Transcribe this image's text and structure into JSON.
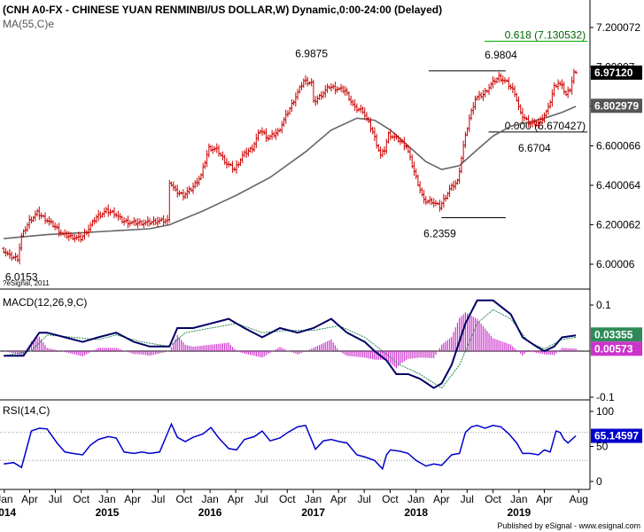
{
  "header": {
    "title": "(CNH A0-FX - CHINESE YUAN RENMINBI/US DOLLAR,W) Dynamic,0:00-24:00 (Delayed)",
    "ma_label": "MA(55,C)e",
    "copyright": "?eSignal, 2011"
  },
  "footer": {
    "publisher": "Published by eSignal - www.esignal.com"
  },
  "colors": {
    "price": "#cc0000",
    "ma": "#666666",
    "macd": "#000066",
    "signal": "#2e8b57",
    "histogram": "#cc33cc",
    "rsi": "#0000cc",
    "fib_line": "#00aa00",
    "last_price_bg": "#000000",
    "ma_bg": "#555555",
    "macd_badge": "#2e8b57",
    "signal_badge": "#cc33cc",
    "rsi_badge": "#0000cc"
  },
  "chart_data": [
    {
      "type": "ohlc",
      "name": "price",
      "y_ticks": [
        "7.200072",
        "7.00007",
        "6.800068",
        "6.600066",
        "6.400064",
        "6.200062",
        "6.00006"
      ],
      "ylim": [
        5.88,
        7.24
      ],
      "price_path": [
        [
          "2013-12-30",
          6.08
        ],
        [
          "2014-01-27",
          6.04
        ],
        [
          "2014-02-24",
          6.03
        ],
        [
          "2014-03-10",
          6.14
        ],
        [
          "2014-04-07",
          6.22
        ],
        [
          "2014-05-05",
          6.26
        ],
        [
          "2014-06-02",
          6.23
        ],
        [
          "2014-07-07",
          6.19
        ],
        [
          "2014-08-04",
          6.15
        ],
        [
          "2014-09-01",
          6.14
        ],
        [
          "2014-10-06",
          6.13
        ],
        [
          "2014-11-03",
          6.18
        ],
        [
          "2014-12-01",
          6.24
        ],
        [
          "2015-01-05",
          6.27
        ],
        [
          "2015-02-02",
          6.26
        ],
        [
          "2015-03-02",
          6.22
        ],
        [
          "2015-04-06",
          6.21
        ],
        [
          "2015-05-04",
          6.21
        ],
        [
          "2015-06-01",
          6.21
        ],
        [
          "2015-07-06",
          6.22
        ],
        [
          "2015-08-10",
          6.22
        ],
        [
          "2015-08-17",
          6.42
        ],
        [
          "2015-09-07",
          6.37
        ],
        [
          "2015-10-05",
          6.35
        ],
        [
          "2015-11-02",
          6.38
        ],
        [
          "2015-12-07",
          6.45
        ],
        [
          "2016-01-04",
          6.59
        ],
        [
          "2016-02-01",
          6.58
        ],
        [
          "2016-03-07",
          6.51
        ],
        [
          "2016-04-04",
          6.48
        ],
        [
          "2016-05-02",
          6.55
        ],
        [
          "2016-06-06",
          6.59
        ],
        [
          "2016-07-04",
          6.68
        ],
        [
          "2016-08-01",
          6.64
        ],
        [
          "2016-09-05",
          6.67
        ],
        [
          "2016-10-03",
          6.75
        ],
        [
          "2016-11-07",
          6.85
        ],
        [
          "2016-12-05",
          6.93
        ],
        [
          "2017-01-02",
          6.92
        ],
        [
          "2017-01-09",
          6.82
        ],
        [
          "2017-02-06",
          6.86
        ],
        [
          "2017-03-06",
          6.9
        ],
        [
          "2017-04-03",
          6.89
        ],
        [
          "2017-05-01",
          6.88
        ],
        [
          "2017-06-05",
          6.79
        ],
        [
          "2017-07-03",
          6.78
        ],
        [
          "2017-08-07",
          6.67
        ],
        [
          "2017-09-04",
          6.55
        ],
        [
          "2017-09-18",
          6.58
        ],
        [
          "2017-10-02",
          6.66
        ],
        [
          "2017-11-06",
          6.63
        ],
        [
          "2017-12-04",
          6.6
        ],
        [
          "2018-01-01",
          6.47
        ],
        [
          "2018-02-05",
          6.32
        ],
        [
          "2018-03-05",
          6.32
        ],
        [
          "2018-04-02",
          6.29
        ],
        [
          "2018-05-07",
          6.38
        ],
        [
          "2018-06-04",
          6.42
        ],
        [
          "2018-06-25",
          6.6
        ],
        [
          "2018-07-16",
          6.74
        ],
        [
          "2018-08-06",
          6.84
        ],
        [
          "2018-09-03",
          6.86
        ],
        [
          "2018-10-01",
          6.91
        ],
        [
          "2018-10-29",
          6.95
        ],
        [
          "2018-11-26",
          6.92
        ],
        [
          "2018-12-24",
          6.87
        ],
        [
          "2019-01-14",
          6.76
        ],
        [
          "2019-02-11",
          6.72
        ],
        [
          "2019-03-11",
          6.71
        ],
        [
          "2019-04-01",
          6.74
        ],
        [
          "2019-04-22",
          6.79
        ],
        [
          "2019-05-13",
          6.9
        ],
        [
          "2019-05-27",
          6.92
        ],
        [
          "2019-06-10",
          6.9
        ],
        [
          "2019-06-24",
          6.86
        ],
        [
          "2019-07-08",
          6.89
        ],
        [
          "2019-07-22",
          6.9712
        ]
      ],
      "ma_path": [
        [
          "2013-12-30",
          6.13
        ],
        [
          "2014-06-02",
          6.15
        ],
        [
          "2014-10-06",
          6.16
        ],
        [
          "2015-02-02",
          6.17
        ],
        [
          "2015-06-01",
          6.18
        ],
        [
          "2015-08-10",
          6.2
        ],
        [
          "2015-12-07",
          6.27
        ],
        [
          "2016-04-04",
          6.35
        ],
        [
          "2016-08-01",
          6.44
        ],
        [
          "2016-12-05",
          6.57
        ],
        [
          "2017-03-06",
          6.68
        ],
        [
          "2017-06-05",
          6.74
        ],
        [
          "2017-08-07",
          6.73
        ],
        [
          "2017-10-02",
          6.68
        ],
        [
          "2017-12-04",
          6.6
        ],
        [
          "2018-02-05",
          6.52
        ],
        [
          "2018-04-02",
          6.48
        ],
        [
          "2018-06-04",
          6.5
        ],
        [
          "2018-08-06",
          6.58
        ],
        [
          "2018-10-01",
          6.65
        ],
        [
          "2018-12-03",
          6.7
        ],
        [
          "2019-02-04",
          6.72
        ],
        [
          "2019-04-01",
          6.74
        ],
        [
          "2019-06-03",
          6.77
        ],
        [
          "2019-07-22",
          6.8
        ]
      ],
      "annotations": [
        {
          "label": "6.9875",
          "date": "2016-12-26",
          "value": 6.9875,
          "pos": "above"
        },
        {
          "label": "6.9804",
          "date": "2018-10-29",
          "value": 6.9804,
          "pos": "above"
        },
        {
          "label": "6.2359",
          "date": "2018-03-26",
          "value": 6.2359,
          "pos": "below"
        },
        {
          "label": "6.0153",
          "date": "2014-03-03",
          "value": 6.0153,
          "pos": "below"
        },
        {
          "label": "6.6704",
          "date": "2019-02-25",
          "value": 6.6704,
          "pos": "below"
        }
      ],
      "fib_lines": [
        {
          "label": "0.618 (7.130532)",
          "value": 7.130532,
          "from": "2018-09-01",
          "to": "2019-09-01",
          "color": "#00aa00"
        },
        {
          "label": "0.000 (6.670427)",
          "value": 6.670427,
          "from": "2018-09-15",
          "to": "2019-09-01",
          "color": "#000000"
        }
      ],
      "level_lines": [
        {
          "value": 6.9804,
          "from": "2018-02-15",
          "to": "2018-11-15"
        },
        {
          "value": 6.2359,
          "from": "2018-04-01",
          "to": "2018-11-15"
        }
      ],
      "last_price_label": "6.97120",
      "ma_value_label": "6.802979"
    },
    {
      "type": "line",
      "name": "MACD(12,26,9,C)",
      "label": "MACD(12,26,9,C)",
      "y_ticks": [
        "0.1",
        "-0.1"
      ],
      "ylim": [
        -0.12,
        0.13
      ],
      "macd_path": [
        [
          "2013-12-30",
          -0.01
        ],
        [
          "2014-03-10",
          -0.01
        ],
        [
          "2014-05-05",
          0.04
        ],
        [
          "2014-06-02",
          0.04
        ],
        [
          "2014-08-04",
          0.03
        ],
        [
          "2014-10-06",
          0.02
        ],
        [
          "2014-12-01",
          0.03
        ],
        [
          "2015-02-02",
          0.04
        ],
        [
          "2015-04-06",
          0.02
        ],
        [
          "2015-06-01",
          0.01
        ],
        [
          "2015-08-10",
          0.01
        ],
        [
          "2015-09-07",
          0.05
        ],
        [
          "2015-11-02",
          0.05
        ],
        [
          "2016-01-04",
          0.06
        ],
        [
          "2016-03-07",
          0.07
        ],
        [
          "2016-05-02",
          0.05
        ],
        [
          "2016-07-04",
          0.03
        ],
        [
          "2016-09-05",
          0.05
        ],
        [
          "2016-11-07",
          0.04
        ],
        [
          "2017-01-02",
          0.05
        ],
        [
          "2017-03-06",
          0.07
        ],
        [
          "2017-05-01",
          0.04
        ],
        [
          "2017-07-03",
          0.02
        ],
        [
          "2017-08-07",
          0.0
        ],
        [
          "2017-09-18",
          -0.02
        ],
        [
          "2017-10-23",
          -0.05
        ],
        [
          "2017-12-04",
          -0.05
        ],
        [
          "2018-01-15",
          -0.06
        ],
        [
          "2018-03-05",
          -0.08
        ],
        [
          "2018-04-02",
          -0.07
        ],
        [
          "2018-05-07",
          -0.03
        ],
        [
          "2018-06-25",
          0.06
        ],
        [
          "2018-08-06",
          0.11
        ],
        [
          "2018-10-01",
          0.11
        ],
        [
          "2018-12-03",
          0.08
        ],
        [
          "2019-01-14",
          0.03
        ],
        [
          "2019-03-04",
          0.01
        ],
        [
          "2019-04-01",
          0.0
        ],
        [
          "2019-05-06",
          0.01
        ],
        [
          "2019-06-03",
          0.03
        ],
        [
          "2019-07-22",
          0.034
        ]
      ],
      "signal_path": [
        [
          "2013-12-30",
          -0.01
        ],
        [
          "2014-04-07",
          0.0
        ],
        [
          "2014-06-02",
          0.035
        ],
        [
          "2014-09-01",
          0.03
        ],
        [
          "2014-12-01",
          0.025
        ],
        [
          "2015-02-02",
          0.035
        ],
        [
          "2015-05-04",
          0.02
        ],
        [
          "2015-08-10",
          0.01
        ],
        [
          "2015-10-05",
          0.04
        ],
        [
          "2016-01-04",
          0.05
        ],
        [
          "2016-04-04",
          0.06
        ],
        [
          "2016-07-04",
          0.04
        ],
        [
          "2016-10-03",
          0.045
        ],
        [
          "2017-01-02",
          0.045
        ],
        [
          "2017-04-03",
          0.055
        ],
        [
          "2017-07-03",
          0.03
        ],
        [
          "2017-09-04",
          0.0
        ],
        [
          "2017-11-06",
          -0.03
        ],
        [
          "2018-01-15",
          -0.05
        ],
        [
          "2018-04-02",
          -0.08
        ],
        [
          "2018-06-04",
          -0.03
        ],
        [
          "2018-08-06",
          0.06
        ],
        [
          "2018-10-01",
          0.09
        ],
        [
          "2018-12-03",
          0.07
        ],
        [
          "2019-02-04",
          0.02
        ],
        [
          "2019-04-01",
          0.005
        ],
        [
          "2019-06-03",
          0.025
        ],
        [
          "2019-07-22",
          0.03
        ]
      ],
      "last_value_labels": [
        "0.03355",
        "0.00573"
      ]
    },
    {
      "type": "line",
      "name": "RSI(14,C)",
      "label": "RSI(14,C)",
      "y_ticks": [
        "100",
        "50",
        "0"
      ],
      "ylim": [
        0,
        100
      ],
      "overbought": 70,
      "oversold": 30,
      "rsi_path": [
        [
          "2013-12-30",
          25
        ],
        [
          "2014-02-03",
          27
        ],
        [
          "2014-03-03",
          20
        ],
        [
          "2014-04-07",
          72
        ],
        [
          "2014-05-05",
          76
        ],
        [
          "2014-06-02",
          75
        ],
        [
          "2014-07-07",
          55
        ],
        [
          "2014-08-04",
          42
        ],
        [
          "2014-09-01",
          40
        ],
        [
          "2014-10-06",
          38
        ],
        [
          "2014-11-03",
          52
        ],
        [
          "2014-12-01",
          60
        ],
        [
          "2015-01-05",
          64
        ],
        [
          "2015-02-02",
          62
        ],
        [
          "2015-03-02",
          42
        ],
        [
          "2015-04-06",
          40
        ],
        [
          "2015-05-04",
          42
        ],
        [
          "2015-06-01",
          40
        ],
        [
          "2015-07-06",
          42
        ],
        [
          "2015-08-17",
          82
        ],
        [
          "2015-09-07",
          63
        ],
        [
          "2015-10-05",
          57
        ],
        [
          "2015-11-02",
          63
        ],
        [
          "2015-12-07",
          68
        ],
        [
          "2016-01-04",
          77
        ],
        [
          "2016-02-01",
          62
        ],
        [
          "2016-03-07",
          47
        ],
        [
          "2016-04-04",
          45
        ],
        [
          "2016-05-02",
          60
        ],
        [
          "2016-06-06",
          64
        ],
        [
          "2016-07-04",
          72
        ],
        [
          "2016-08-01",
          58
        ],
        [
          "2016-09-05",
          62
        ],
        [
          "2016-10-03",
          70
        ],
        [
          "2016-11-07",
          78
        ],
        [
          "2016-12-05",
          80
        ],
        [
          "2017-01-09",
          46
        ],
        [
          "2017-02-06",
          58
        ],
        [
          "2017-03-06",
          60
        ],
        [
          "2017-04-03",
          57
        ],
        [
          "2017-05-01",
          55
        ],
        [
          "2017-06-05",
          38
        ],
        [
          "2017-07-03",
          35
        ],
        [
          "2017-08-07",
          30
        ],
        [
          "2017-09-04",
          18
        ],
        [
          "2017-09-18",
          38
        ],
        [
          "2017-10-02",
          45
        ],
        [
          "2017-11-06",
          43
        ],
        [
          "2017-12-04",
          40
        ],
        [
          "2018-01-01",
          30
        ],
        [
          "2018-02-05",
          22
        ],
        [
          "2018-03-05",
          25
        ],
        [
          "2018-04-02",
          23
        ],
        [
          "2018-05-07",
          38
        ],
        [
          "2018-06-04",
          40
        ],
        [
          "2018-06-25",
          70
        ],
        [
          "2018-07-16",
          78
        ],
        [
          "2018-08-06",
          80
        ],
        [
          "2018-09-03",
          76
        ],
        [
          "2018-10-01",
          80
        ],
        [
          "2018-10-29",
          78
        ],
        [
          "2018-11-26",
          68
        ],
        [
          "2018-12-24",
          55
        ],
        [
          "2019-01-14",
          40
        ],
        [
          "2019-02-11",
          40
        ],
        [
          "2019-03-11",
          38
        ],
        [
          "2019-04-01",
          45
        ],
        [
          "2019-04-22",
          42
        ],
        [
          "2019-05-13",
          72
        ],
        [
          "2019-05-27",
          70
        ],
        [
          "2019-06-10",
          60
        ],
        [
          "2019-06-24",
          55
        ],
        [
          "2019-07-08",
          60
        ],
        [
          "2019-07-22",
          65.14597
        ]
      ],
      "last_value_label": "65.14597"
    }
  ],
  "x_axis": {
    "ticks": [
      {
        "date": "2014-01-01",
        "month": "Jan",
        "year": "2014"
      },
      {
        "date": "2014-04-01",
        "month": "Apr",
        "year": ""
      },
      {
        "date": "2014-07-01",
        "month": "Jul",
        "year": ""
      },
      {
        "date": "2014-10-01",
        "month": "Oct",
        "year": ""
      },
      {
        "date": "2015-01-01",
        "month": "Jan",
        "year": "2015"
      },
      {
        "date": "2015-04-01",
        "month": "Apr",
        "year": ""
      },
      {
        "date": "2015-07-01",
        "month": "Jul",
        "year": ""
      },
      {
        "date": "2015-10-01",
        "month": "Oct",
        "year": ""
      },
      {
        "date": "2016-01-01",
        "month": "Jan",
        "year": "2016"
      },
      {
        "date": "2016-04-01",
        "month": "Apr",
        "year": ""
      },
      {
        "date": "2016-07-01",
        "month": "Jul",
        "year": ""
      },
      {
        "date": "2016-10-01",
        "month": "Oct",
        "year": ""
      },
      {
        "date": "2017-01-01",
        "month": "Jan",
        "year": "2017"
      },
      {
        "date": "2017-04-01",
        "month": "Apr",
        "year": ""
      },
      {
        "date": "2017-07-01",
        "month": "Jul",
        "year": ""
      },
      {
        "date": "2017-10-01",
        "month": "Oct",
        "year": ""
      },
      {
        "date": "2018-01-01",
        "month": "Jan",
        "year": "2018"
      },
      {
        "date": "2018-04-01",
        "month": "Apr",
        "year": ""
      },
      {
        "date": "2018-07-01",
        "month": "Jul",
        "year": ""
      },
      {
        "date": "2018-10-01",
        "month": "Oct",
        "year": ""
      },
      {
        "date": "2019-01-01",
        "month": "Jan",
        "year": "2019"
      },
      {
        "date": "2019-04-01",
        "month": "Apr",
        "year": ""
      },
      {
        "date": "2019-08-01",
        "month": "Aug",
        "year": ""
      }
    ]
  }
}
